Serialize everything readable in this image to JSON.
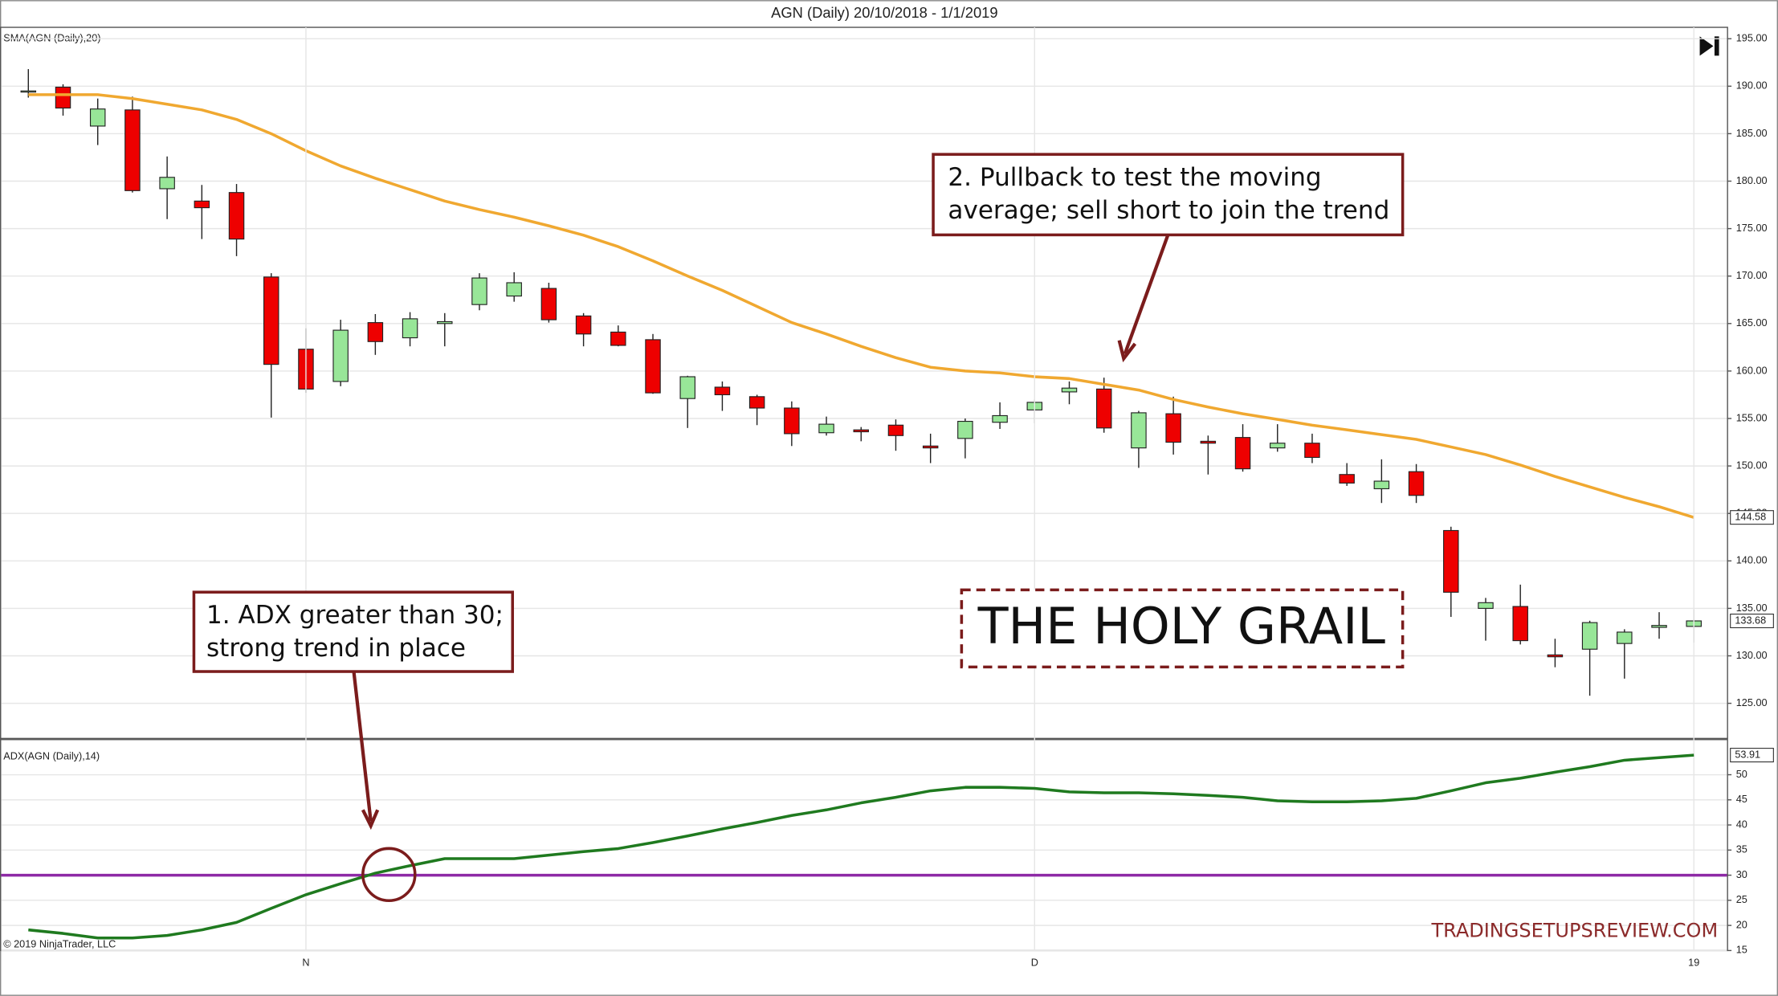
{
  "chart_data": [
    {
      "type": "candlestick",
      "title": "AGN (Daily)  20/10/2018 - 1/1/2019",
      "pane_label": "SMA(AGN (Daily),20)",
      "open": [
        189.4,
        189.9,
        185.8,
        187.5,
        179.2,
        177.9,
        178.8,
        169.9,
        162.3,
        158.9,
        165.1,
        163.5,
        165.0,
        167.0,
        167.9,
        168.7,
        165.8,
        164.1,
        163.3,
        157.1,
        158.3,
        157.3,
        156.1,
        153.5,
        153.8,
        154.3,
        152.1,
        152.9,
        154.6,
        155.9,
        157.8,
        158.1,
        151.9,
        155.5,
        152.6,
        153.0,
        151.9,
        152.4,
        149.1,
        147.6,
        149.4,
        143.2,
        135.0,
        135.2,
        130.1,
        130.7,
        131.3,
        133.0,
        133.1
      ],
      "high": [
        191.8,
        190.2,
        188.7,
        188.9,
        182.6,
        179.6,
        179.7,
        170.3,
        164.5,
        165.4,
        166.0,
        166.2,
        166.1,
        170.3,
        170.4,
        169.3,
        166.1,
        164.8,
        163.9,
        159.5,
        158.9,
        157.5,
        156.8,
        155.2,
        154.1,
        154.9,
        153.4,
        155.0,
        156.7,
        157.0,
        158.9,
        159.3,
        155.8,
        157.3,
        153.2,
        154.4,
        154.4,
        153.4,
        150.3,
        150.7,
        150.2,
        143.6,
        136.1,
        137.5,
        131.8,
        133.7,
        132.8,
        134.6,
        134.9
      ],
      "low": [
        188.8,
        186.9,
        183.8,
        178.8,
        176.0,
        173.9,
        172.1,
        155.1,
        157.7,
        158.4,
        161.7,
        162.6,
        162.6,
        166.4,
        167.3,
        165.1,
        162.6,
        162.6,
        157.6,
        154.0,
        155.8,
        154.3,
        152.1,
        153.2,
        152.6,
        151.6,
        150.3,
        150.8,
        153.9,
        154.5,
        156.5,
        153.5,
        149.8,
        151.2,
        149.1,
        149.4,
        151.5,
        150.3,
        147.9,
        146.1,
        146.1,
        134.1,
        131.6,
        131.2,
        128.8,
        125.8,
        127.6,
        131.8,
        131.4
      ],
      "close": [
        189.5,
        187.7,
        187.6,
        179.0,
        180.4,
        177.2,
        173.9,
        160.7,
        158.1,
        164.3,
        163.1,
        165.5,
        165.2,
        169.8,
        169.3,
        165.4,
        163.9,
        162.7,
        157.7,
        159.4,
        157.5,
        156.1,
        153.4,
        154.4,
        153.6,
        153.2,
        151.9,
        154.7,
        155.3,
        156.7,
        158.2,
        154.0,
        155.6,
        152.5,
        152.4,
        149.7,
        152.4,
        150.9,
        148.2,
        148.4,
        146.9,
        136.7,
        135.6,
        131.6,
        129.9,
        133.5,
        132.5,
        133.2,
        133.68
      ],
      "up_color": "#98e698",
      "down_color": "#ee0000",
      "overlay": {
        "color": "#f0a830",
        "values": [
          189.1,
          189.1,
          189.1,
          188.7,
          188.1,
          187.5,
          186.5,
          185.0,
          183.2,
          181.6,
          180.3,
          179.1,
          177.9,
          177.0,
          176.2,
          175.3,
          174.3,
          173.1,
          171.6,
          170.0,
          168.5,
          166.8,
          165.1,
          163.9,
          162.6,
          161.4,
          160.4,
          160.0,
          159.8,
          159.4,
          159.2,
          158.6,
          158.0,
          157.0,
          156.2,
          155.5,
          154.9,
          154.3,
          153.8,
          153.3,
          152.8,
          152.0,
          151.2,
          150.1,
          148.9,
          147.8,
          146.7,
          145.7,
          144.58
        ]
      },
      "ylim": [
        121.3,
        196.2
      ],
      "yticks": [
        {
          "value": 125,
          "label": "125.00"
        },
        {
          "value": 130,
          "label": "130.00"
        },
        {
          "value": 135,
          "label": "135.00"
        },
        {
          "value": 140,
          "label": "140.00"
        },
        {
          "value": 145,
          "label": "145.00"
        },
        {
          "value": 150,
          "label": "150.00"
        },
        {
          "value": 155,
          "label": "155.00"
        },
        {
          "value": 160,
          "label": "160.00"
        },
        {
          "value": 165,
          "label": "165.00"
        },
        {
          "value": 170,
          "label": "170.00"
        },
        {
          "value": 175,
          "label": "175.00"
        },
        {
          "value": 180,
          "label": "180.00"
        },
        {
          "value": 185,
          "label": "185.00"
        },
        {
          "value": 190,
          "label": "190.00"
        },
        {
          "value": 195,
          "label": "195.00"
        }
      ],
      "grid": true
    },
    {
      "type": "line",
      "pane_label": "ADX(AGN (Daily),14)",
      "color": "#1f7a1f",
      "categories": [
        null,
        null,
        null,
        null,
        null,
        null,
        null,
        null,
        "N",
        null,
        null,
        null,
        null,
        null,
        null,
        null,
        null,
        null,
        null,
        null,
        null,
        null,
        null,
        null,
        null,
        null,
        null,
        null,
        null,
        "D",
        null,
        null,
        null,
        null,
        null,
        null,
        null,
        null,
        null,
        null,
        null,
        null,
        null,
        null,
        null,
        null,
        null,
        null,
        "19"
      ],
      "values": [
        19.1,
        18.4,
        17.5,
        17.5,
        18.0,
        19.1,
        20.6,
        23.4,
        26.1,
        28.3,
        30.4,
        31.9,
        33.3,
        33.3,
        33.3,
        34.0,
        34.7,
        35.3,
        36.5,
        37.8,
        39.2,
        40.5,
        41.9,
        43.0,
        44.4,
        45.5,
        46.8,
        47.5,
        47.5,
        47.3,
        46.6,
        46.4,
        46.4,
        46.2,
        45.9,
        45.5,
        44.8,
        44.6,
        44.6,
        44.8,
        45.3,
        46.8,
        48.4,
        49.3,
        50.5,
        51.6,
        52.9,
        53.4,
        53.91
      ],
      "reference_line": {
        "value": 30,
        "color": "#8e2aa6"
      },
      "ylim": [
        15,
        57
      ],
      "yticks": [
        15,
        20,
        25,
        30,
        35,
        40,
        45,
        50
      ],
      "grid": true
    }
  ],
  "copyright": "© 2019 NinjaTrader, LLC",
  "annotations": [
    {
      "lines": [
        "2. Pullback to test the moving",
        "average; sell short to join the trend"
      ]
    },
    {
      "lines": [
        "1. ADX greater than 30;",
        "strong trend in place"
      ]
    }
  ],
  "headline": "THE HOLY GRAIL",
  "watermark": "TRADINGSETUPSREVIEW.COM"
}
